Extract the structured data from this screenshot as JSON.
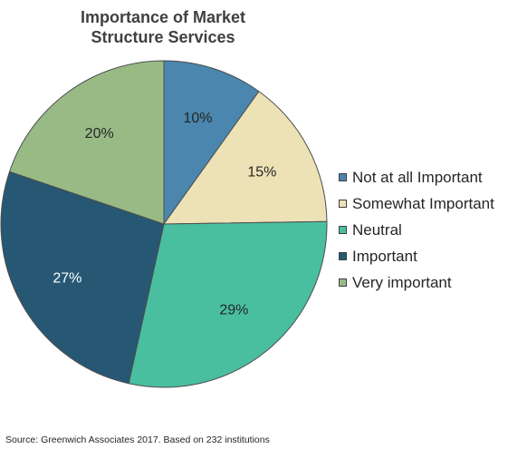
{
  "chart_data": {
    "type": "pie",
    "title_lines": [
      "Importance of Market",
      "Structure Services"
    ],
    "slices": [
      {
        "name": "Not at all Important",
        "value": 10,
        "label": "10%",
        "color": "#4a86ad",
        "label_color": "#262626"
      },
      {
        "name": "Somewhat Important",
        "value": 15,
        "label": "15%",
        "color": "#ede2b6",
        "label_color": "#262626"
      },
      {
        "name": "Neutral",
        "value": 29,
        "label": "29%",
        "color": "#49bfa0",
        "label_color": "#262626"
      },
      {
        "name": "Important",
        "value": 27,
        "label": "27%",
        "color": "#265874",
        "label_color": "#ffffff"
      },
      {
        "name": "Very important",
        "value": 20,
        "label": "20%",
        "color": "#98bb86",
        "label_color": "#262626"
      }
    ],
    "start_angle_deg": 0,
    "direction": "clockwise",
    "legend_position": "right"
  },
  "footer": {
    "source": "Source:  Greenwich Associates 2017.  Based on 232 institutions"
  }
}
